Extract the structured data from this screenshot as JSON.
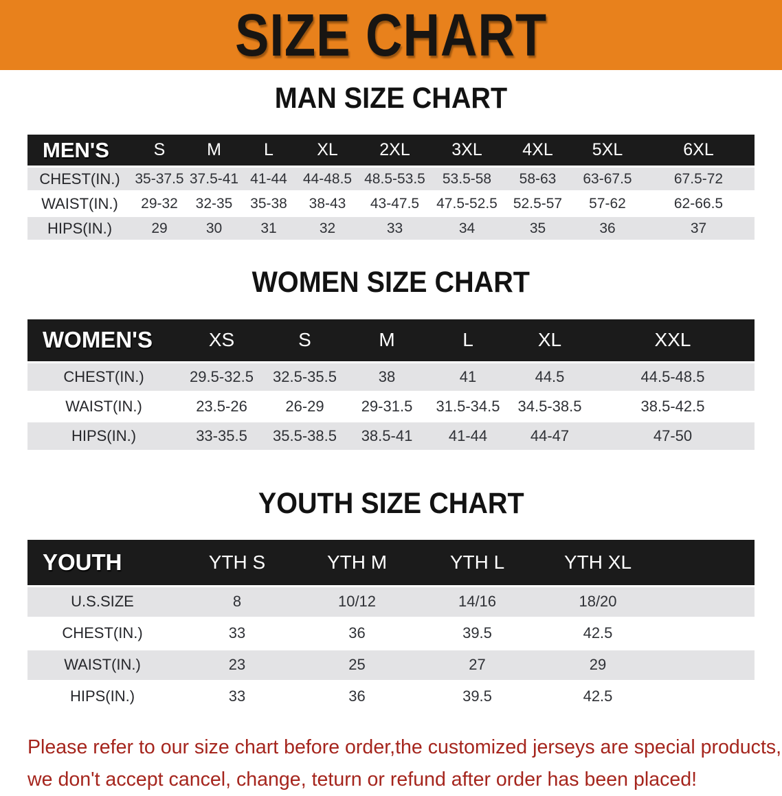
{
  "banner": {
    "title": "SIZE CHART",
    "bg_color": "#e8811c",
    "text_color": "#181512"
  },
  "colors": {
    "table_header_bg": "#1b1b1b",
    "row_stripe": "#e3e3e5",
    "disclaimer_text": "#a5251d"
  },
  "sections": [
    {
      "heading": "MAN SIZE CHART",
      "table": {
        "header_label": "MEN'S",
        "columns": [
          "S",
          "M",
          "L",
          "XL",
          "2XL",
          "3XL",
          "4XL",
          "5XL",
          "6XL"
        ],
        "rows": [
          {
            "label": "CHEST(IN.)",
            "values": [
              "35-37.5",
              "37.5-41",
              "41-44",
              "44-48.5",
              "48.5-53.5",
              "53.5-58",
              "58-63",
              "63-67.5",
              "67.5-72"
            ]
          },
          {
            "label": "WAIST(IN.)",
            "values": [
              "29-32",
              "32-35",
              "35-38",
              "38-43",
              "43-47.5",
              "47.5-52.5",
              "52.5-57",
              "57-62",
              "62-66.5"
            ]
          },
          {
            "label": "HIPS(IN.)",
            "values": [
              "29",
              "30",
              "31",
              "32",
              "33",
              "34",
              "35",
              "36",
              "37"
            ]
          }
        ]
      }
    },
    {
      "heading": "WOMEN SIZE CHART",
      "table": {
        "header_label": "WOMEN'S",
        "columns": [
          "XS",
          "S",
          "M",
          "L",
          "XL",
          "XXL"
        ],
        "rows": [
          {
            "label": "CHEST(IN.)",
            "values": [
              "29.5-32.5",
              "32.5-35.5",
              "38",
              "41",
              "44.5",
              "44.5-48.5"
            ]
          },
          {
            "label": "WAIST(IN.)",
            "values": [
              "23.5-26",
              "26-29",
              "29-31.5",
              "31.5-34.5",
              "34.5-38.5",
              "38.5-42.5"
            ]
          },
          {
            "label": "HIPS(IN.)",
            "values": [
              "33-35.5",
              "35.5-38.5",
              "38.5-41",
              "41-44",
              "44-47",
              "47-50"
            ]
          }
        ]
      }
    },
    {
      "heading": "YOUTH SIZE CHART",
      "table": {
        "header_label": "YOUTH",
        "columns": [
          "YTH S",
          "YTH M",
          "YTH L",
          "YTH XL"
        ],
        "rows": [
          {
            "label": "U.S.SIZE",
            "values": [
              "8",
              "10/12",
              "14/16",
              "18/20"
            ]
          },
          {
            "label": "CHEST(IN.)",
            "values": [
              "33",
              "36",
              "39.5",
              "42.5"
            ]
          },
          {
            "label": "WAIST(IN.)",
            "values": [
              "23",
              "25",
              "27",
              "29"
            ]
          },
          {
            "label": "HIPS(IN.)",
            "values": [
              "33",
              "36",
              "39.5",
              "42.5"
            ]
          }
        ]
      }
    }
  ],
  "disclaimer": {
    "line1": "Please refer to our size chart before order,the customized jerseys are special products,",
    "line2": "we don't accept cancel, change, teturn or refund after order has been placed!"
  }
}
